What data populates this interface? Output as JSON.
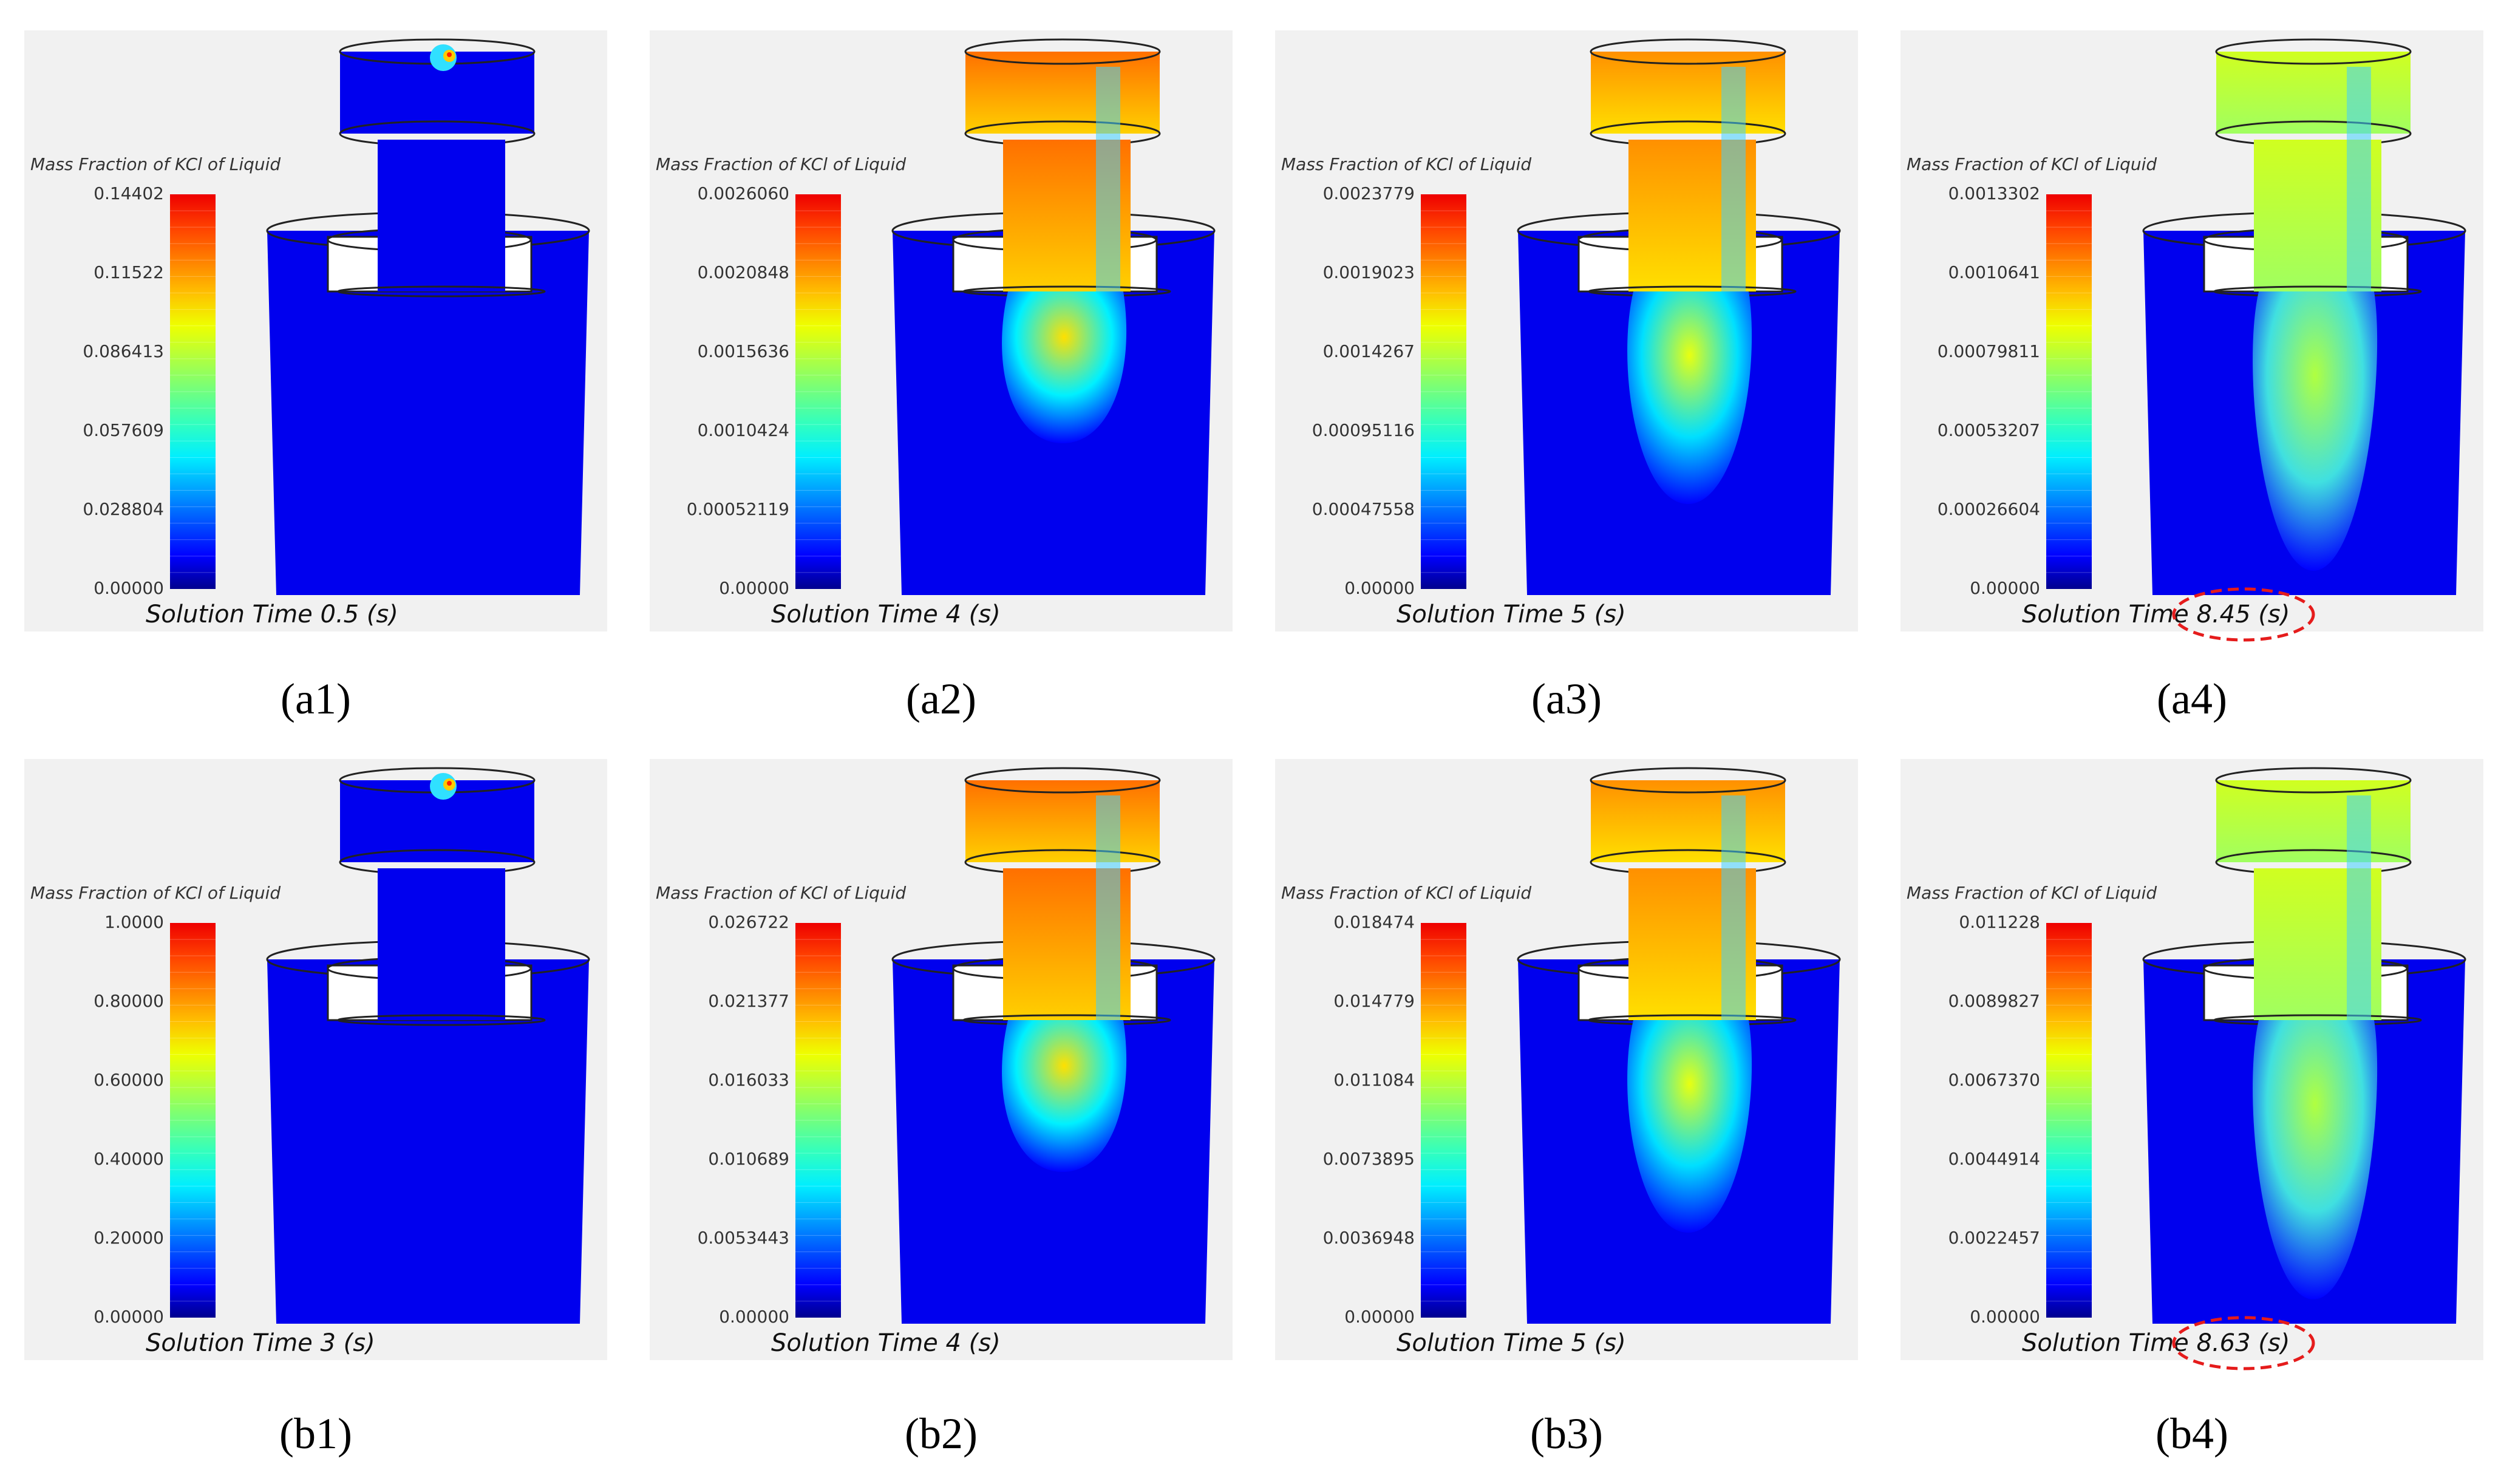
{
  "colorbar_title": "Mass Fraction of KCl of Liquid",
  "solution_prefix": "Solution Time",
  "solution_unit": "(s)",
  "colors": {
    "domain": "#0000ee",
    "highlight_ellipse": "#e51c1c"
  },
  "panels": [
    {
      "id": "a1",
      "time": "0.5",
      "ticks": [
        "0.14402",
        "0.11522",
        "0.086413",
        "0.057609",
        "0.028804",
        "0.00000"
      ],
      "stage": 0,
      "highlight": false
    },
    {
      "id": "a2",
      "time": "4",
      "ticks": [
        "0.0026060",
        "0.0020848",
        "0.0015636",
        "0.0010424",
        "0.00052119",
        "0.00000"
      ],
      "stage": 1,
      "highlight": false
    },
    {
      "id": "a3",
      "time": "5",
      "ticks": [
        "0.0023779",
        "0.0019023",
        "0.0014267",
        "0.00095116",
        "0.00047558",
        "0.00000"
      ],
      "stage": 2,
      "highlight": false
    },
    {
      "id": "a4",
      "time": "8.45",
      "ticks": [
        "0.0013302",
        "0.0010641",
        "0.00079811",
        "0.00053207",
        "0.00026604",
        "0.00000"
      ],
      "stage": 3,
      "highlight": true
    },
    {
      "id": "b1",
      "time": "3",
      "ticks": [
        "1.0000",
        "0.80000",
        "0.60000",
        "0.40000",
        "0.20000",
        "0.00000"
      ],
      "stage": 0,
      "highlight": false
    },
    {
      "id": "b2",
      "time": "4",
      "ticks": [
        "0.026722",
        "0.021377",
        "0.016033",
        "0.010689",
        "0.0053443",
        "0.00000"
      ],
      "stage": 1,
      "highlight": false
    },
    {
      "id": "b3",
      "time": "5",
      "ticks": [
        "0.018474",
        "0.014779",
        "0.011084",
        "0.0073895",
        "0.0036948",
        "0.00000"
      ],
      "stage": 2,
      "highlight": false
    },
    {
      "id": "b4",
      "time": "8.63",
      "ticks": [
        "0.011228",
        "0.0089827",
        "0.0067370",
        "0.0044914",
        "0.0022457",
        "0.00000"
      ],
      "stage": 3,
      "highlight": true
    }
  ]
}
